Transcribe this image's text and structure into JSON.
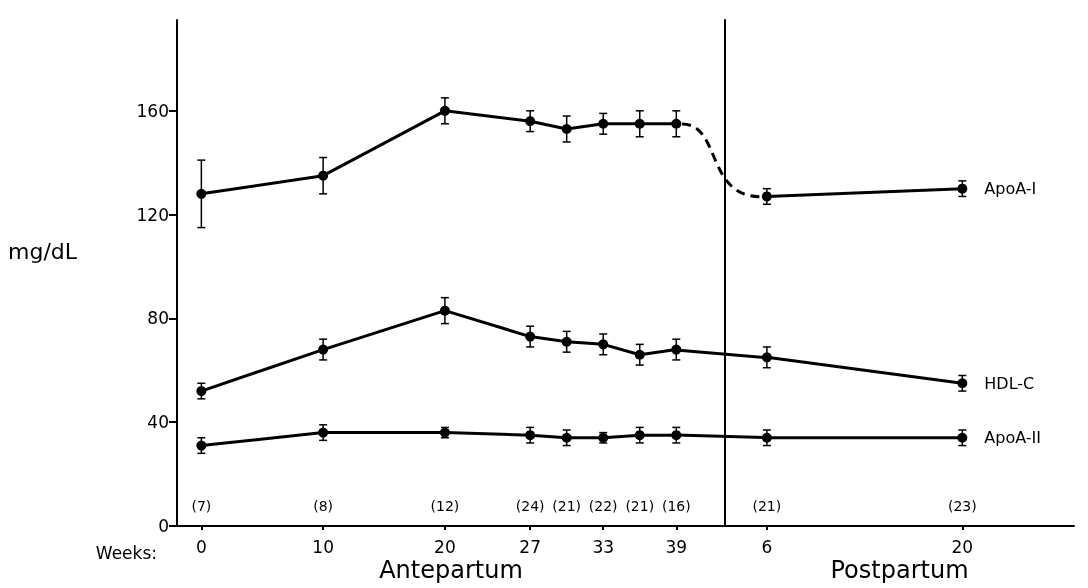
{
  "chart_data": [
    {
      "type": "line",
      "ylabel": "mg/dL",
      "xlabel": "Antepartum",
      "x": [
        0,
        10,
        20,
        27,
        30,
        33,
        36,
        39
      ],
      "xlim": [
        -2,
        43
      ],
      "xticks": [
        0,
        10,
        20,
        27,
        33,
        39
      ],
      "ylim": [
        0,
        195
      ],
      "yticks": [
        0,
        40,
        80,
        120,
        160
      ],
      "grid": false,
      "legend": false,
      "marker": "circle",
      "line_style": "solid",
      "series": [
        {
          "color": "#000000",
          "values": [
            128,
            135,
            160,
            156,
            153,
            155,
            155,
            155
          ],
          "errors": [
            13,
            7,
            5,
            4,
            5,
            4,
            5,
            5
          ]
        },
        {
          "color": "#000000",
          "values": [
            52,
            68,
            83,
            73,
            71,
            70,
            66,
            68
          ],
          "errors": [
            3,
            4,
            5,
            4,
            4,
            4,
            4,
            4
          ]
        },
        {
          "color": "#000000",
          "values": [
            31,
            36,
            36,
            35,
            34,
            34,
            35,
            35
          ],
          "errors": [
            3,
            3,
            2,
            3,
            3,
            2,
            3,
            3
          ]
        }
      ],
      "annotations": [
        "Weeks:",
        "(7)",
        "(8)",
        "(12)",
        "(24)",
        "(21)",
        "(22)",
        "(21)",
        "(16)"
      ]
    },
    {
      "type": "line",
      "xlabel": "Postpartum",
      "tick_labels": "x",
      "x": [
        6,
        20
      ],
      "xlim": [
        3,
        28
      ],
      "xticks": [
        6,
        20
      ],
      "ylim": [
        0,
        195
      ],
      "grid": false,
      "legend": false,
      "marker": "circle",
      "line_style": "solid",
      "series": [
        {
          "name": "ApoA-I",
          "color": "#000000",
          "values": [
            127,
            130
          ],
          "errors": [
            3,
            3
          ]
        },
        {
          "name": "HDL-C",
          "color": "#000000",
          "values": [
            65,
            55
          ],
          "errors": [
            4,
            3
          ]
        },
        {
          "name": "ApoA-II",
          "color": "#000000",
          "values": [
            34,
            34
          ],
          "errors": [
            3,
            3
          ]
        }
      ],
      "annotations": [
        "(21)",
        "(23)"
      ]
    }
  ]
}
